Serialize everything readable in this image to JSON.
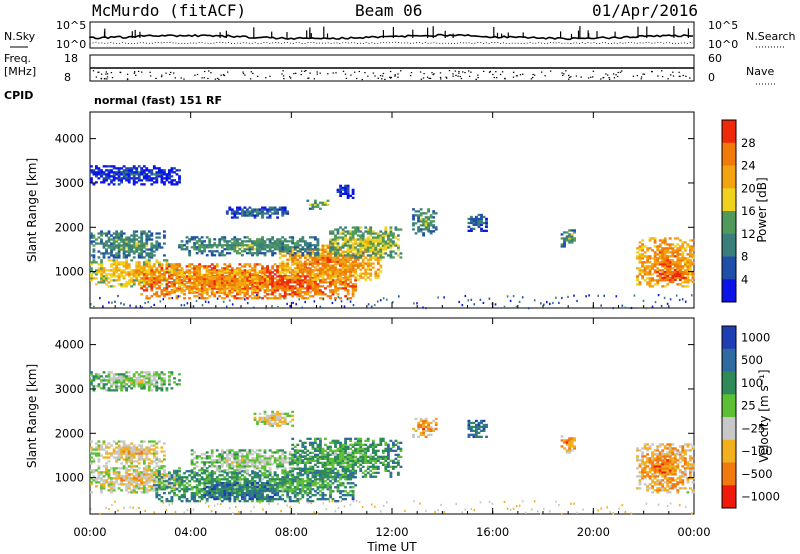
{
  "header": {
    "station": "McMurdo (fitACF)",
    "beam": "Beam 06",
    "date": "01/Apr/2016"
  },
  "side_labels": {
    "nsky": "N.Sky",
    "freq_line1": "Freq.",
    "freq_line2": "[MHz]",
    "cpid": "CPID",
    "nsearch": "N.Search",
    "nave": "Nave",
    "nsky_ticks": [
      "10^5",
      "10^0"
    ],
    "nsearch_ticks": [
      "10^5",
      "10^0"
    ],
    "freq_ticks": [
      "18",
      "8"
    ],
    "nave_ticks": [
      "60",
      "0"
    ]
  },
  "cpid_text": "normal (fast) 151 RF",
  "chart_data": [
    {
      "type": "heatmap",
      "panel": "power",
      "ylabel": "Slant Range [km]",
      "xlabel": "Time UT",
      "xlim_hours": [
        0,
        24
      ],
      "ylim_km": [
        180,
        4600
      ],
      "xticks": [
        "00:00",
        "04:00",
        "08:00",
        "12:00",
        "16:00",
        "20:00",
        "00:00"
      ],
      "yticks": [
        1000,
        2000,
        3000,
        4000
      ],
      "colorbar": {
        "label": "Power [dB]",
        "ticks": [
          "4",
          "8",
          "12",
          "16",
          "20",
          "24",
          "28"
        ],
        "colors": [
          "#0a14e6",
          "#1f4fa8",
          "#3a7f7c",
          "#4f9a5a",
          "#f0d21e",
          "#f2a30f",
          "#f07a0a",
          "#ee2a0a"
        ]
      },
      "regions": [
        {
          "t0": 0.0,
          "t1": 3.6,
          "r0": 650,
          "r1": 1250,
          "level": 5
        },
        {
          "t0": 2.0,
          "t1": 10.5,
          "r0": 380,
          "r1": 1150,
          "level": 7
        },
        {
          "t0": 3.2,
          "t1": 7.0,
          "r0": 500,
          "r1": 1000,
          "level": 6
        },
        {
          "t0": 7.5,
          "t1": 11.5,
          "r0": 800,
          "r1": 1600,
          "level": 6
        },
        {
          "t0": 9.5,
          "t1": 12.3,
          "r0": 1300,
          "r1": 2000,
          "level": 4
        },
        {
          "t0": 0.0,
          "t1": 3.0,
          "r0": 1300,
          "r1": 1900,
          "level": 3
        },
        {
          "t0": 3.5,
          "t1": 9.0,
          "r0": 1350,
          "r1": 1800,
          "level": 3
        },
        {
          "t0": 0.0,
          "t1": 3.6,
          "r0": 2950,
          "r1": 3400,
          "level": 1
        },
        {
          "t0": 5.4,
          "t1": 7.8,
          "r0": 2200,
          "r1": 2450,
          "level": 2
        },
        {
          "t0": 8.6,
          "t1": 9.4,
          "r0": 2400,
          "r1": 2600,
          "level": 4
        },
        {
          "t0": 9.8,
          "t1": 10.4,
          "r0": 2600,
          "r1": 3000,
          "level": 1
        },
        {
          "t0": 12.8,
          "t1": 13.7,
          "r0": 1800,
          "r1": 2400,
          "level": 3
        },
        {
          "t0": 15.0,
          "t1": 15.7,
          "r0": 1900,
          "r1": 2300,
          "level": 2
        },
        {
          "t0": 18.7,
          "t1": 19.3,
          "r0": 1550,
          "r1": 1950,
          "level": 3
        },
        {
          "t0": 21.7,
          "t1": 24.0,
          "r0": 650,
          "r1": 1750,
          "level": 6
        },
        {
          "t0": 22.5,
          "t1": 24.0,
          "r0": 750,
          "r1": 1050,
          "level": 7
        }
      ]
    },
    {
      "type": "heatmap",
      "panel": "velocity",
      "ylabel": "Slant Range [km]",
      "xlabel": "Time UT",
      "xlim_hours": [
        0,
        24
      ],
      "ylim_km": [
        180,
        4600
      ],
      "xticks": [
        "00:00",
        "04:00",
        "08:00",
        "12:00",
        "16:00",
        "20:00",
        "00:00"
      ],
      "yticks": [
        1000,
        2000,
        3000,
        4000
      ],
      "colorbar": {
        "label": "Velocity [m s⁻¹]",
        "ticks": [
          "1000",
          "500",
          "100",
          "25",
          "−25",
          "−100",
          "−500",
          "−1000"
        ],
        "colors": [
          "#1e3fb3",
          "#2f6aa0",
          "#2f8a5a",
          "#5cc035",
          "#c8c8c8",
          "#f2b020",
          "#f07a10",
          "#ee1a0a"
        ]
      },
      "regions": [
        {
          "t0": 0.0,
          "t1": 3.6,
          "r0": 650,
          "r1": 1250,
          "level": 5
        },
        {
          "t0": 2.5,
          "t1": 10.5,
          "r0": 450,
          "r1": 1150,
          "level": 3
        },
        {
          "t0": 4.5,
          "t1": 7.5,
          "r0": 500,
          "r1": 900,
          "level": 2
        },
        {
          "t0": 4.0,
          "t1": 8.5,
          "r0": 1100,
          "r1": 1600,
          "level": 4
        },
        {
          "t0": 8.0,
          "t1": 12.3,
          "r0": 1000,
          "r1": 1900,
          "level": 3
        },
        {
          "t0": 0.0,
          "t1": 3.0,
          "r0": 1300,
          "r1": 1800,
          "level": 5
        },
        {
          "t0": 0.0,
          "t1": 3.6,
          "r0": 2950,
          "r1": 3400,
          "level": 4
        },
        {
          "t0": 6.5,
          "t1": 8.0,
          "r0": 2150,
          "r1": 2500,
          "level": 5
        },
        {
          "t0": 12.8,
          "t1": 13.7,
          "r0": 1900,
          "r1": 2350,
          "level": 6
        },
        {
          "t0": 15.0,
          "t1": 15.7,
          "r0": 1900,
          "r1": 2300,
          "level": 2
        },
        {
          "t0": 18.7,
          "t1": 19.3,
          "r0": 1550,
          "r1": 1950,
          "level": 6
        },
        {
          "t0": 21.7,
          "t1": 24.0,
          "r0": 650,
          "r1": 1750,
          "level": 6
        }
      ]
    }
  ]
}
